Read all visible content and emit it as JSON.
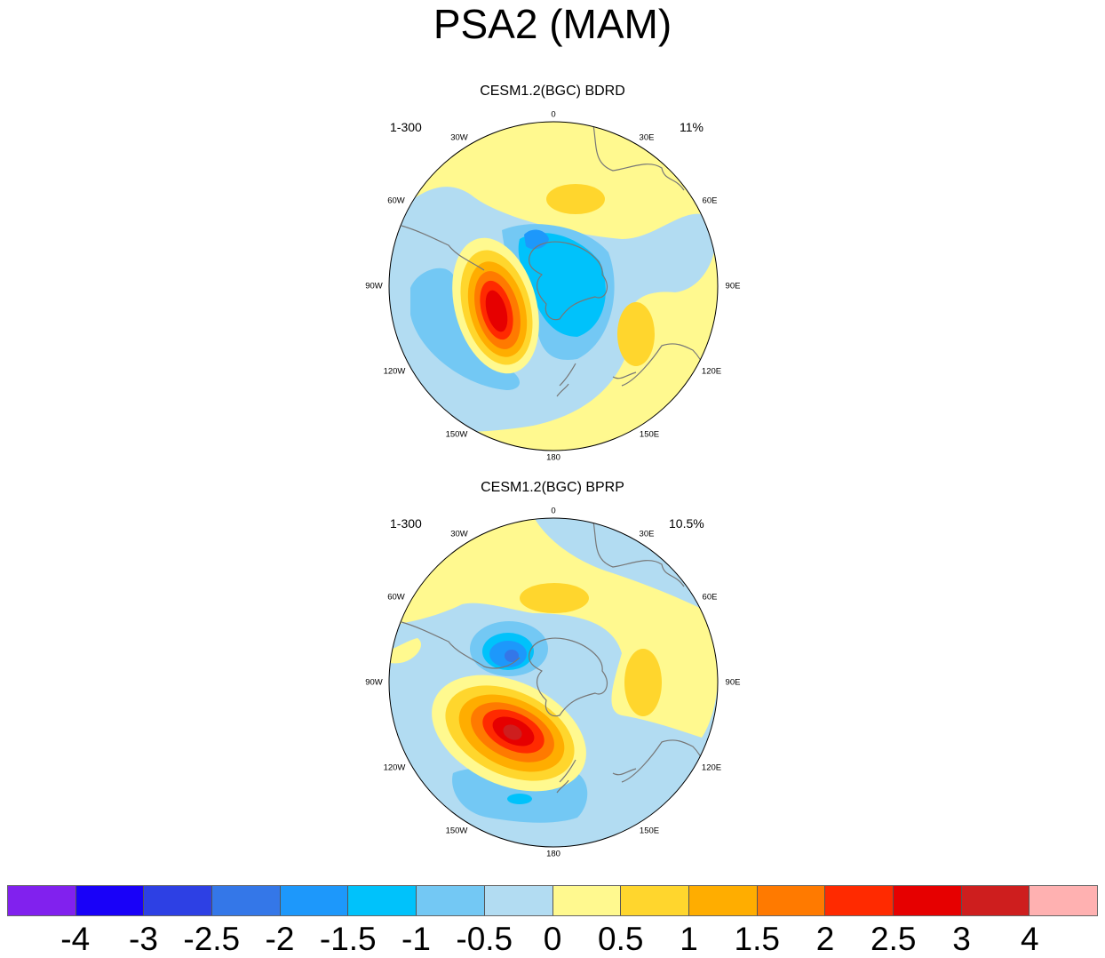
{
  "title": "PSA2 (MAM)",
  "panels": [
    {
      "title": "CESM1.2(BGC) BDRD",
      "years": "1-300",
      "variance": "11%"
    },
    {
      "title": "CESM1.2(BGC) BPRP",
      "years": "1-300",
      "variance": "10.5%"
    }
  ],
  "lon_labels": {
    "l0": "0",
    "l30e": "30E",
    "l60e": "60E",
    "l90e": "90E",
    "l120e": "120E",
    "l150e": "150E",
    "l180": "180",
    "l150w": "150W",
    "l120w": "120W",
    "l90w": "90W",
    "l60w": "60W",
    "l30w": "30W"
  },
  "colorbar": {
    "colors": [
      "#8121ee",
      "#1901f8",
      "#2d40e4",
      "#3477e8",
      "#1d98fb",
      "#00c2fb",
      "#73c8f4",
      "#b2dcf2",
      "#fff98f",
      "#ffd62d",
      "#ffad00",
      "#ff7a00",
      "#ff2a00",
      "#e60000",
      "#ce1e1e",
      "#ffb1b1"
    ],
    "labels": [
      "-4",
      "-3",
      "-2.5",
      "-2",
      "-1.5",
      "-1",
      "-0.5",
      "0",
      "0.5",
      "1",
      "1.5",
      "2",
      "2.5",
      "3",
      "4"
    ]
  }
}
